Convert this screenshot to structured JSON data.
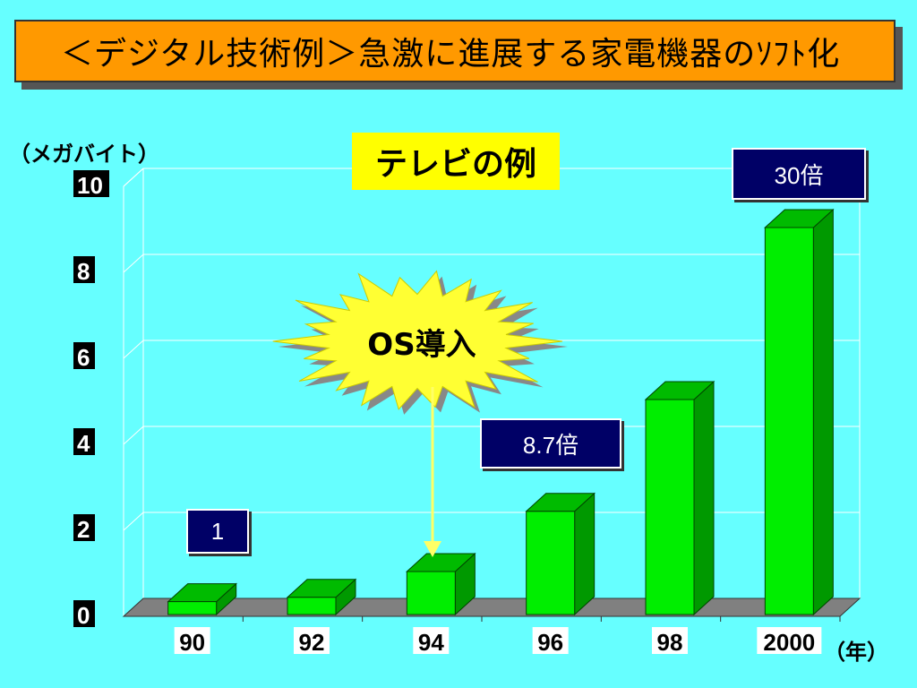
{
  "title": "＜デジタル技術例＞急激に進展する家電機器のｿﾌﾄ化",
  "chart_data": {
    "type": "bar",
    "title": "テレビの例",
    "ylabel": "（メガバイト）",
    "xlabel": "（年）",
    "categories": [
      "90",
      "92",
      "94",
      "96",
      "98",
      "2000"
    ],
    "values": [
      0.3,
      0.4,
      1.0,
      2.4,
      5.0,
      9.0
    ],
    "ylim": [
      0,
      10
    ],
    "yticks": [
      0,
      2,
      4,
      6,
      8,
      10
    ],
    "grid": true,
    "bar_color": "#00EE00",
    "annotations": {
      "base": "1",
      "mid_ratio": "8.7倍",
      "top_ratio": "30倍",
      "event": "OS導入",
      "event_category": "94"
    }
  }
}
